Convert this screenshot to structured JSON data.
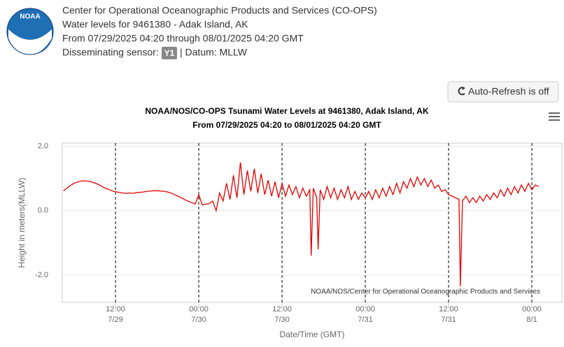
{
  "header": {
    "lines": [
      "Center for Operational Oceanographic Products and Services (CO-OPS)",
      "Water levels for 9461380 - Adak Island, AK",
      "From 07/29/2025 04:20 through 08/01/2025 04:20 GMT"
    ],
    "sensor_label": "Disseminating sensor:",
    "sensor": "Y1",
    "datum": "| Datum: MLLW",
    "logo": "NOAA"
  },
  "button": "Auto-Refresh is off",
  "chart_data": {
    "type": "line",
    "title": "NOAA/NOS/CO-OPS Tsunami Water Levels at 9461380, Adak Island, AK",
    "subtitle": "From 07/29/2025 04:20 to 08/01/2025 04:20 GMT",
    "y_label": "Height in meters(MLLW)",
    "x_label": "Date/Time (GMT)",
    "credit": "NOAA/NOS/Center for Operational Oceanographic Products and Services",
    "xlim": [
      4.33,
      76.33
    ],
    "ylim": [
      -2.85,
      2.1
    ],
    "xticks": [
      {
        "value": 12,
        "label": "12:00"
      },
      {
        "value": 24,
        "label": "00:00"
      },
      {
        "value": 36,
        "label": "12:00"
      },
      {
        "value": 48,
        "label": "00:00"
      },
      {
        "value": 60,
        "label": "12:00"
      },
      {
        "value": 72,
        "label": "00:00"
      }
    ],
    "xtick_dates": [
      "7/29",
      "7/30",
      "7/30",
      "7/31",
      "7/31",
      "8/1"
    ],
    "yticks": [
      {
        "value": 2,
        "label": "2.0"
      },
      {
        "value": 0,
        "label": "0.0"
      },
      {
        "value": -2,
        "label": "-2.0"
      }
    ],
    "grid": true,
    "series": [
      {
        "color": "#e00000",
        "x": [
          4.5,
          5,
          5.5,
          6,
          6.5,
          7,
          7.5,
          8,
          8.5,
          9,
          9.5,
          10,
          10.5,
          11,
          11.5,
          12,
          12.5,
          13,
          13.5,
          14,
          14.5,
          15,
          15.5,
          16,
          16.5,
          17,
          17.5,
          18,
          18.5,
          19,
          19.5,
          20,
          20.5,
          21,
          21.5,
          22,
          22.5,
          23,
          23.5,
          24,
          24.5,
          25,
          25.5,
          26,
          26.5,
          27,
          27.5,
          28,
          28.5,
          29,
          29.5,
          30,
          30.5,
          31,
          31.5,
          32,
          32.5,
          33,
          33.5,
          34,
          34.5,
          35,
          35.5,
          36,
          36.5,
          37,
          37.5,
          38,
          38.5,
          39,
          39.5,
          40,
          40.2,
          40.5,
          41,
          41.2,
          41.5,
          42,
          42.5,
          43,
          43.5,
          44,
          44.5,
          45,
          45.5,
          46,
          46.5,
          47,
          47.5,
          48,
          48.5,
          49,
          49.5,
          50,
          50.5,
          51,
          51.5,
          52,
          52.5,
          53,
          53.5,
          54,
          54.5,
          55,
          55.5,
          56,
          56.5,
          57,
          57.5,
          58,
          58.5,
          59,
          59.5,
          60,
          60.5,
          61,
          61.5,
          61.7,
          62,
          62.5,
          63,
          63.5,
          64,
          64.5,
          65,
          65.5,
          66,
          66.5,
          67,
          67.5,
          68,
          68.5,
          69,
          69.5,
          70,
          70.5,
          71,
          71.5,
          72,
          72.5,
          73
        ],
        "values": [
          0.62,
          0.7,
          0.78,
          0.85,
          0.89,
          0.92,
          0.93,
          0.92,
          0.9,
          0.86,
          0.82,
          0.76,
          0.7,
          0.66,
          0.62,
          0.59,
          0.57,
          0.55,
          0.54,
          0.55,
          0.54,
          0.56,
          0.57,
          0.58,
          0.6,
          0.61,
          0.62,
          0.62,
          0.61,
          0.6,
          0.58,
          0.55,
          0.5,
          0.45,
          0.4,
          0.34,
          0.29,
          0.25,
          0.21,
          0.5,
          0.18,
          0.2,
          0.22,
          0.3,
          0.0,
          0.55,
          0.3,
          0.85,
          0.35,
          1.1,
          0.4,
          1.5,
          0.5,
          1.25,
          0.6,
          1.3,
          0.55,
          1.15,
          0.5,
          0.95,
          0.45,
          0.9,
          0.4,
          0.85,
          0.45,
          0.8,
          0.5,
          0.75,
          0.4,
          0.7,
          0.45,
          0.65,
          -1.4,
          0.7,
          0.4,
          -1.2,
          0.65,
          0.35,
          0.75,
          0.4,
          0.7,
          0.35,
          0.65,
          0.4,
          0.75,
          0.35,
          0.6,
          0.35,
          0.55,
          0.4,
          0.6,
          0.35,
          0.65,
          0.4,
          0.7,
          0.45,
          0.75,
          0.5,
          0.85,
          0.55,
          0.9,
          0.7,
          1.0,
          0.75,
          1.05,
          0.8,
          1.0,
          0.75,
          0.95,
          0.7,
          0.8,
          0.6,
          0.65,
          0.5,
          0.45,
          0.4,
          0.35,
          -2.35,
          0.3,
          0.45,
          0.25,
          0.4,
          0.25,
          0.45,
          0.3,
          0.5,
          0.35,
          0.55,
          0.4,
          0.65,
          0.45,
          0.7,
          0.5,
          0.75,
          0.55,
          0.8,
          0.6,
          0.85,
          0.65,
          0.8,
          0.75
        ]
      }
    ]
  }
}
